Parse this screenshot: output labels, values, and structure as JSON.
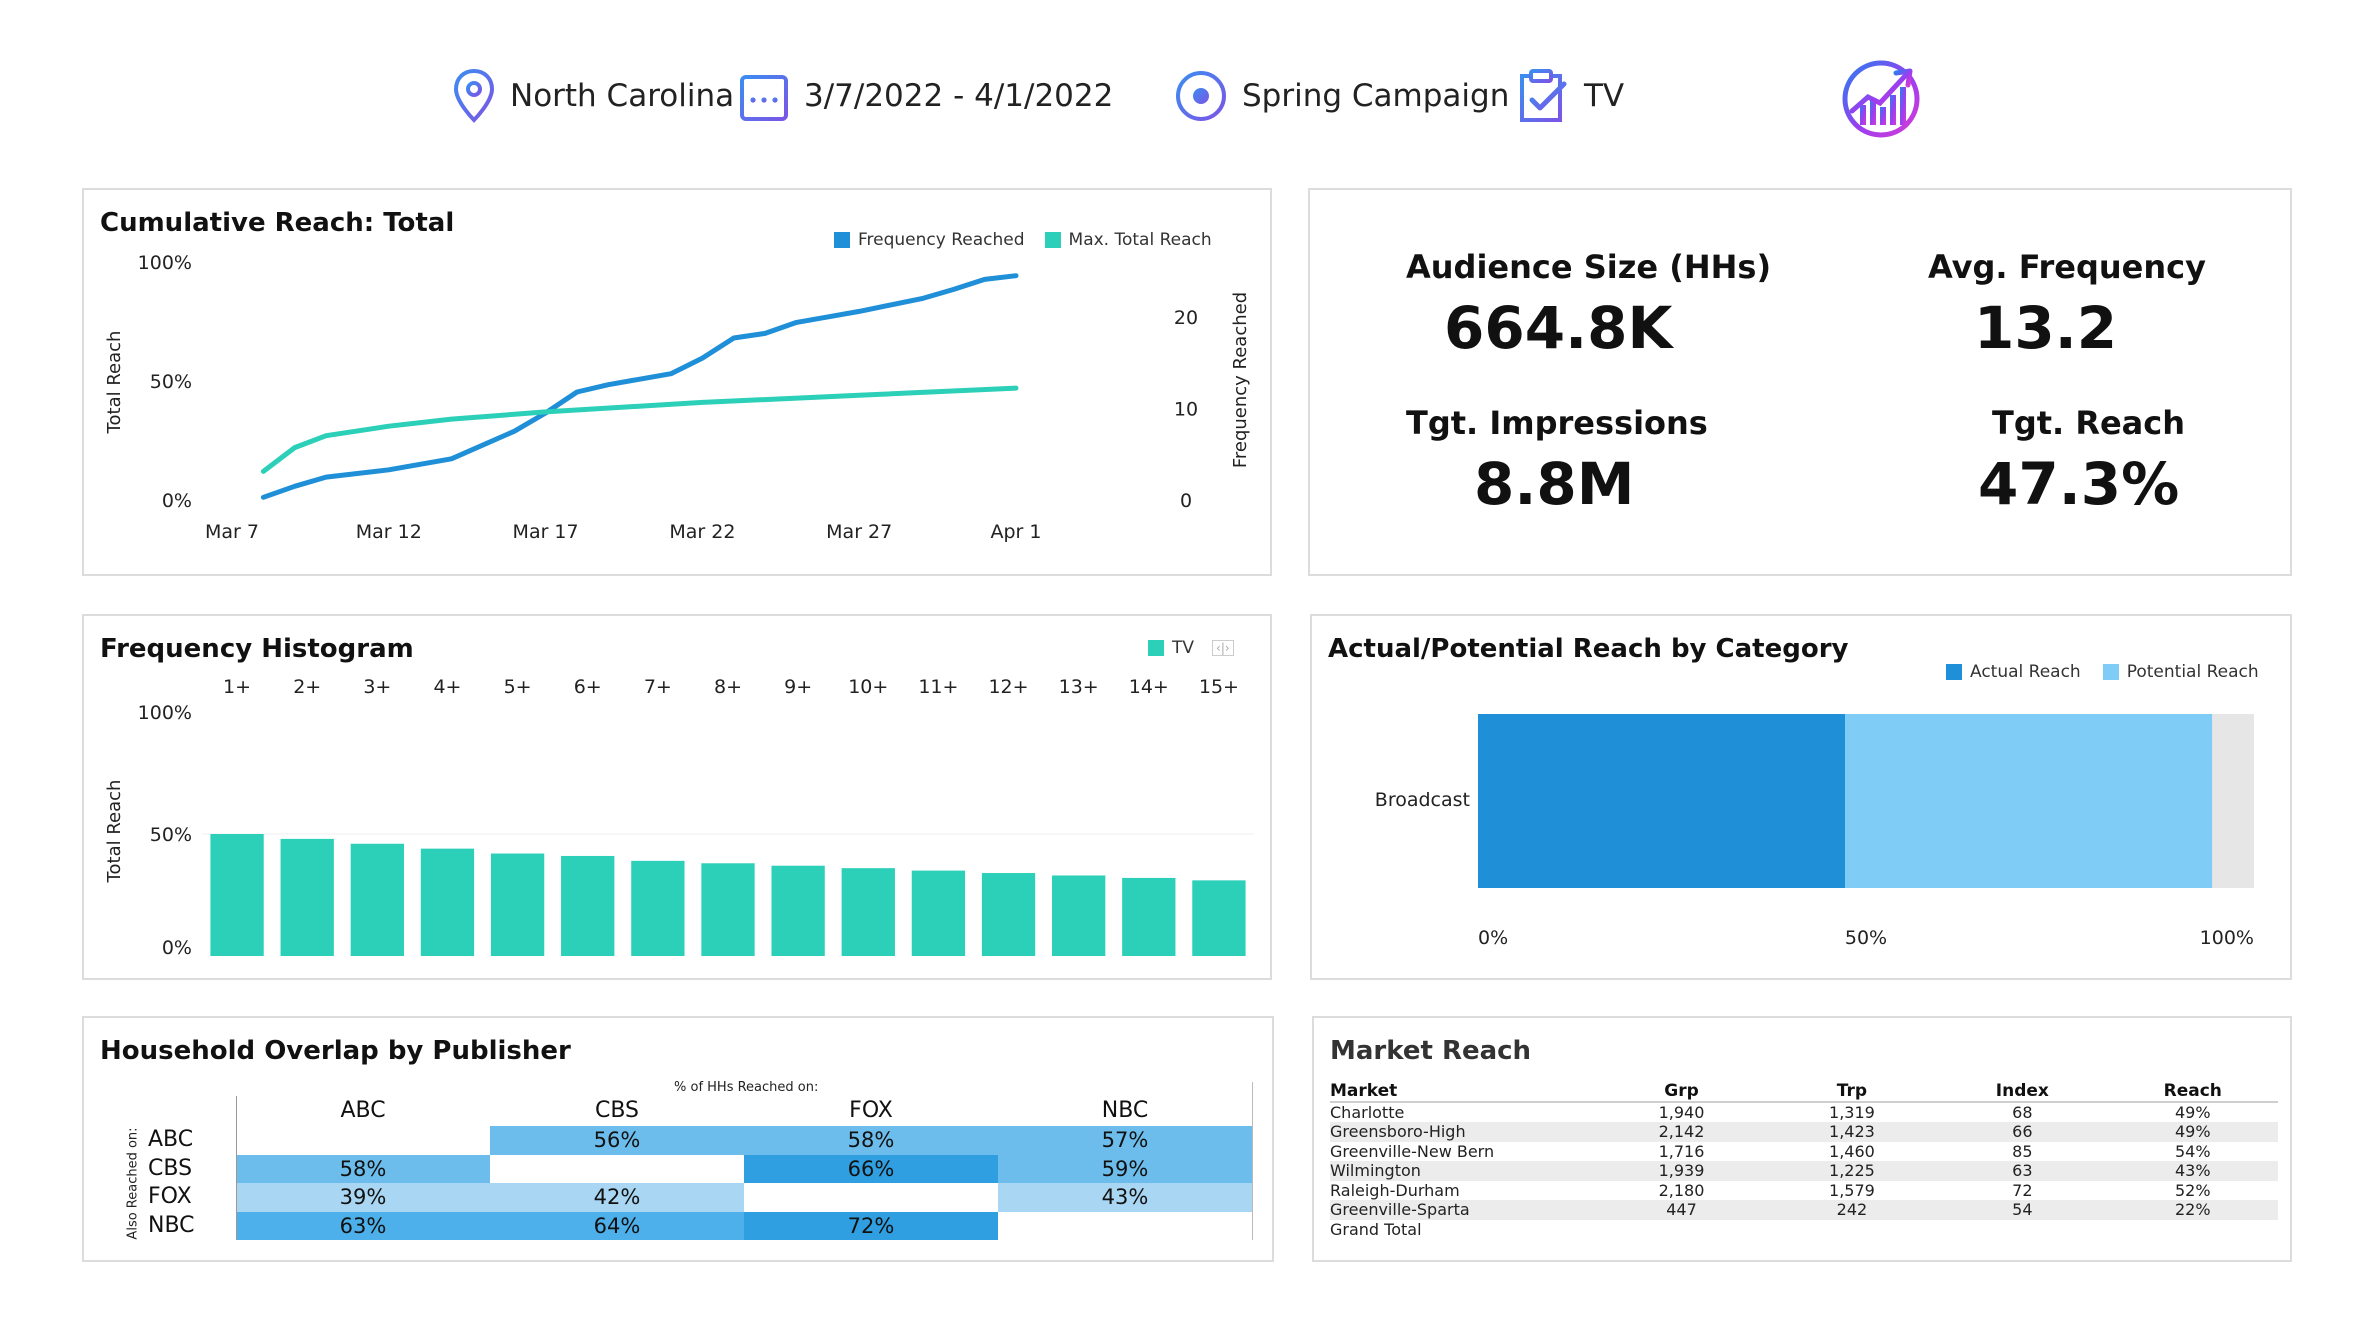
{
  "header": {
    "location": "North Carolina",
    "date_range": "3/7/2022 - 4/1/2022",
    "campaign": "Spring Campaign",
    "channel": "TV",
    "icons": [
      "location-pin-icon",
      "calendar-icon",
      "target-icon",
      "clipboard-check-icon",
      "analytics-logo-icon"
    ]
  },
  "colors": {
    "blue": "#1f8fd8",
    "teal": "#2ccfb8",
    "light_blue": "#7fcdf7",
    "panel_border": "#dcdcdc"
  },
  "cumulative": {
    "title": "Cumulative Reach: Total",
    "legend": [
      "Frequency Reached",
      "Max. Total Reach"
    ],
    "y_left_label": "Total Reach",
    "y_right_label": "Frequency Reached"
  },
  "kpis": [
    {
      "label": "Audience Size (HHs)",
      "value": "664.8K"
    },
    {
      "label": "Avg. Frequency",
      "value": "13.2"
    },
    {
      "label": "Tgt. Impressions",
      "value": "8.8M"
    },
    {
      "label": "Tgt. Reach",
      "value": "47.3%"
    }
  ],
  "histogram": {
    "title": "Frequency Histogram",
    "legend": "TV",
    "y_label": "Total Reach"
  },
  "category": {
    "title": "Actual/Potential Reach by Category",
    "legend": [
      "Actual Reach",
      "Potential Reach"
    ]
  },
  "overlap": {
    "title": "Household Overlap by Publisher",
    "subtitle": "% of HHs Reached on:",
    "side_label": "Also Reached on:",
    "columns": [
      "ABC",
      "CBS",
      "FOX",
      "NBC"
    ],
    "rows": [
      "ABC",
      "CBS",
      "FOX",
      "NBC"
    ],
    "cells": [
      [
        "",
        "56%",
        "58%",
        "57%"
      ],
      [
        "58%",
        "",
        "66%",
        "59%"
      ],
      [
        "39%",
        "42%",
        "",
        "43%"
      ],
      [
        "63%",
        "64%",
        "72%",
        ""
      ]
    ]
  },
  "market": {
    "title": "Market Reach",
    "columns": [
      "Market",
      "Grp",
      "Trp",
      "Index",
      "Reach"
    ],
    "rows": [
      [
        "Charlotte",
        "1,940",
        "1,319",
        "68",
        "49%"
      ],
      [
        "Greensboro-High",
        "2,142",
        "1,423",
        "66",
        "49%"
      ],
      [
        "Greenville-New Bern",
        "1,716",
        "1,460",
        "85",
        "54%"
      ],
      [
        "Wilmington",
        "1,939",
        "1,225",
        "63",
        "43%"
      ],
      [
        "Raleigh-Durham",
        "2,180",
        "1,579",
        "72",
        "52%"
      ],
      [
        "Greenville-Sparta",
        "447",
        "242",
        "54",
        "22%"
      ],
      [
        "Grand Total",
        "",
        "",
        "",
        ""
      ]
    ]
  },
  "chart_data": [
    {
      "type": "line",
      "title": "Cumulative Reach: Total",
      "x_ticks": [
        "Mar 7",
        "Mar 12",
        "Mar 17",
        "Mar 22",
        "Mar 27",
        "Apr 1"
      ],
      "y_left_ticks": [
        "100%",
        "50%",
        "0%"
      ],
      "y_right_ticks": [
        "20",
        "10",
        "0"
      ],
      "ylim_left": [
        0,
        100
      ],
      "ylim_right": [
        0,
        26
      ],
      "series": [
        {
          "name": "Frequency Reached",
          "axis": "right",
          "x": [
            "2022-03-08",
            "2022-03-09",
            "2022-03-10",
            "2022-03-12",
            "2022-03-14",
            "2022-03-16",
            "2022-03-17",
            "2022-03-18",
            "2022-03-19",
            "2022-03-21",
            "2022-03-22",
            "2022-03-23",
            "2022-03-24",
            "2022-03-25",
            "2022-03-26",
            "2022-03-27",
            "2022-03-29",
            "2022-03-30",
            "2022-03-31",
            "2022-04-01"
          ],
          "values": [
            0.3,
            1.5,
            2.5,
            3.3,
            4.5,
            7.5,
            9.5,
            11.8,
            12.6,
            13.8,
            15.5,
            17.7,
            18.2,
            19.4,
            20.0,
            20.6,
            22.0,
            23.0,
            24.1,
            24.5
          ]
        },
        {
          "name": "Max. Total Reach",
          "axis": "left",
          "x": [
            "2022-03-08",
            "2022-03-09",
            "2022-03-10",
            "2022-03-12",
            "2022-03-14",
            "2022-03-17",
            "2022-03-22",
            "2022-03-27",
            "2022-04-01"
          ],
          "values": [
            12,
            22,
            27,
            31,
            34,
            37,
            41,
            44,
            47
          ]
        }
      ]
    },
    {
      "type": "bar",
      "title": "Frequency Histogram",
      "categories": [
        "1+",
        "2+",
        "3+",
        "4+",
        "5+",
        "6+",
        "7+",
        "8+",
        "9+",
        "10+",
        "11+",
        "12+",
        "13+",
        "14+",
        "15+"
      ],
      "values": [
        50,
        48,
        46,
        44,
        42,
        41,
        39,
        38,
        37,
        36,
        35,
        34,
        33,
        32,
        31
      ],
      "y_ticks": [
        "100%",
        "50%",
        "0%"
      ],
      "ylim": [
        0,
        100
      ]
    },
    {
      "type": "bar",
      "orientation": "horizontal",
      "stacked": true,
      "title": "Actual/Potential Reach by Category",
      "categories": [
        "Broadcast"
      ],
      "series": [
        {
          "name": "Actual Reach",
          "values": [
            47.3
          ]
        },
        {
          "name": "Potential Reach",
          "values": [
            47.3
          ]
        }
      ],
      "x_ticks": [
        "0%",
        "50%",
        "100%"
      ],
      "xlim": [
        0,
        100
      ]
    }
  ]
}
